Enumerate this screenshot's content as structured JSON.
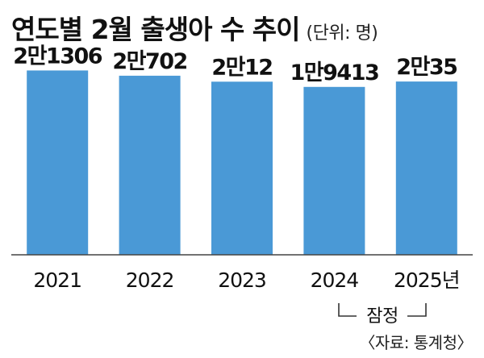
{
  "chart_data": {
    "type": "bar",
    "title": "연도별 2월 출생아 수 추이",
    "unit": "(단위: 명)",
    "categories": [
      "2021",
      "2022",
      "2023",
      "2024",
      "2025년"
    ],
    "values": [
      21306,
      20702,
      20012,
      19413,
      20035
    ],
    "value_labels": [
      "2만1306",
      "2만702",
      "2만12",
      "1만9413",
      "2만35"
    ],
    "ylim": [
      0,
      22000
    ],
    "grid": false,
    "bar_color": "#4a99d6",
    "annotations": {
      "provisional": "잠정",
      "source": "〈자료: 통계청〉"
    }
  }
}
